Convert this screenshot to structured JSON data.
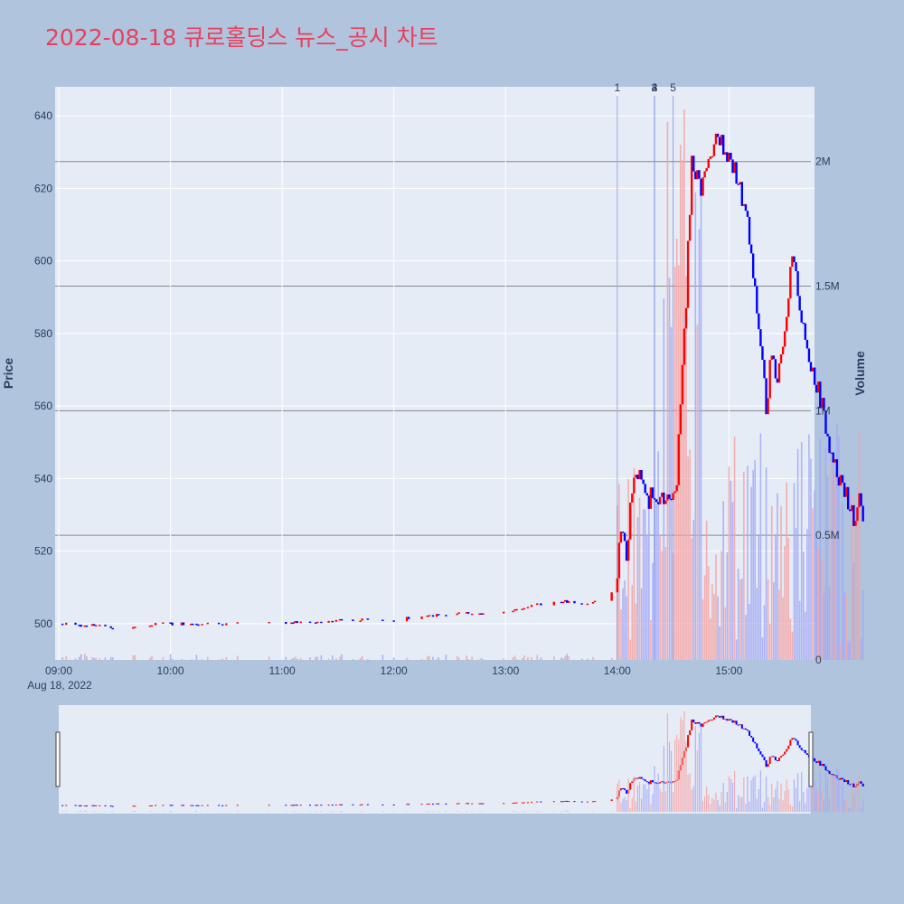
{
  "chart_data": {
    "type": "candlestick",
    "title": "2022-08-18 큐로홀딩스 뉴스_공시 차트",
    "date_label": "Aug 18, 2022",
    "ylabel": "Price",
    "y2label": "Volume",
    "ylim": [
      490,
      648
    ],
    "y2lim": [
      0,
      2300000
    ],
    "y_ticks": [
      "500",
      "520",
      "540",
      "560",
      "580",
      "600",
      "620",
      "640"
    ],
    "y2_ticks": [
      "0",
      "0.5M",
      "1M",
      "1.5M",
      "2M"
    ],
    "x_ticks": [
      "09:00",
      "10:00",
      "11:00",
      "12:00",
      "13:00",
      "14:00",
      "15:00"
    ],
    "up_color": "#ff0000",
    "down_color": "#0000ff",
    "news_markers": [
      {
        "label": "1",
        "time": "14:00"
      },
      {
        "label": "2",
        "time": "14:20"
      },
      {
        "label": "3",
        "time": "14:20"
      },
      {
        "label": "4",
        "time": "14:20"
      },
      {
        "label": "5",
        "time": "14:30"
      }
    ],
    "price_keypoints": [
      [
        "09:00",
        500
      ],
      [
        "09:30",
        499
      ],
      [
        "10:00",
        500
      ],
      [
        "10:30",
        500
      ],
      [
        "11:00",
        500
      ],
      [
        "11:30",
        501
      ],
      [
        "12:00",
        501
      ],
      [
        "12:30",
        503
      ],
      [
        "13:00",
        503
      ],
      [
        "13:15",
        505
      ],
      [
        "13:30",
        506
      ],
      [
        "13:45",
        506
      ],
      [
        "13:55",
        507
      ],
      [
        "14:00",
        512
      ],
      [
        "14:02",
        527
      ],
      [
        "14:05",
        518
      ],
      [
        "14:08",
        537
      ],
      [
        "14:12",
        542
      ],
      [
        "14:15",
        534
      ],
      [
        "14:20",
        535
      ],
      [
        "14:28",
        535
      ],
      [
        "14:32",
        540
      ],
      [
        "14:34",
        560
      ],
      [
        "14:37",
        590
      ],
      [
        "14:40",
        628
      ],
      [
        "14:45",
        620
      ],
      [
        "14:50",
        630
      ],
      [
        "14:55",
        634
      ],
      [
        "15:00",
        628
      ],
      [
        "15:05",
        622
      ],
      [
        "15:10",
        610
      ],
      [
        "15:13",
        595
      ],
      [
        "15:17",
        577
      ],
      [
        "15:20",
        560
      ],
      [
        "15:23",
        575
      ],
      [
        "15:26",
        568
      ],
      [
        "15:30",
        582
      ],
      [
        "15:34",
        600
      ],
      [
        "15:37",
        592
      ],
      [
        "15:40",
        580
      ],
      [
        "15:45",
        570
      ],
      [
        "15:50",
        560
      ],
      [
        "15:55",
        545
      ],
      [
        "16:00",
        540
      ],
      [
        "16:05",
        532
      ],
      [
        "16:08",
        527
      ],
      [
        "16:10",
        533
      ],
      [
        "16:12",
        531
      ]
    ],
    "volume_peak": 2250000
  }
}
